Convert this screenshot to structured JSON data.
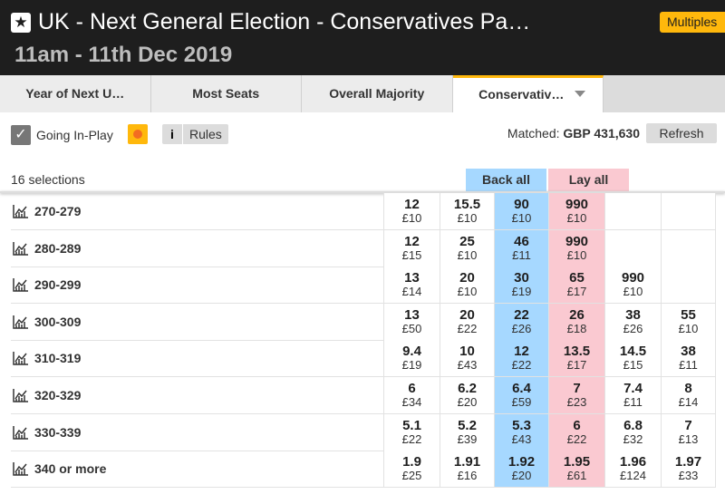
{
  "header": {
    "title": "UK - Next General Election - Conservatives Pa…",
    "subtitle": "11am - 11th Dec 2019",
    "badge": "Multiples"
  },
  "tabs": [
    "Year of Next U…",
    "Most Seats",
    "Overall Majority",
    "Conservativ…"
  ],
  "toolbar": {
    "in_play": "Going In-Play",
    "rules": "Rules",
    "matched_label": "Matched:",
    "matched_amount": "GBP 431,630",
    "refresh": "Refresh"
  },
  "market": {
    "selections": "16 selections",
    "back_all": "Back all",
    "lay_all": "Lay all",
    "rows": [
      {
        "name": "270-279",
        "cells": [
          {
            "price": "12",
            "stake": "£10"
          },
          {
            "price": "15.5",
            "stake": "£10"
          },
          {
            "price": "90",
            "stake": "£10"
          },
          {
            "price": "990",
            "stake": "£10"
          }
        ]
      },
      {
        "name": "280-289",
        "cells": [
          {
            "price": "12",
            "stake": "£15"
          },
          {
            "price": "25",
            "stake": "£10"
          },
          {
            "price": "46",
            "stake": "£11"
          },
          {
            "price": "990",
            "stake": "£10"
          }
        ]
      },
      {
        "name": "290-299",
        "cells": [
          {
            "price": "13",
            "stake": "£14"
          },
          {
            "price": "20",
            "stake": "£10"
          },
          {
            "price": "30",
            "stake": "£19"
          },
          {
            "price": "65",
            "stake": "£17"
          },
          {
            "price": "990",
            "stake": "£10"
          }
        ]
      },
      {
        "name": "300-309",
        "cells": [
          {
            "price": "13",
            "stake": "£50"
          },
          {
            "price": "20",
            "stake": "£22"
          },
          {
            "price": "22",
            "stake": "£26"
          },
          {
            "price": "26",
            "stake": "£18"
          },
          {
            "price": "38",
            "stake": "£26"
          },
          {
            "price": "55",
            "stake": "£10"
          }
        ]
      },
      {
        "name": "310-319",
        "cells": [
          {
            "price": "9.4",
            "stake": "£19"
          },
          {
            "price": "10",
            "stake": "£43"
          },
          {
            "price": "12",
            "stake": "£22"
          },
          {
            "price": "13.5",
            "stake": "£17"
          },
          {
            "price": "14.5",
            "stake": "£15"
          },
          {
            "price": "38",
            "stake": "£11"
          }
        ]
      },
      {
        "name": "320-329",
        "cells": [
          {
            "price": "6",
            "stake": "£34"
          },
          {
            "price": "6.2",
            "stake": "£20"
          },
          {
            "price": "6.4",
            "stake": "£59"
          },
          {
            "price": "7",
            "stake": "£23"
          },
          {
            "price": "7.4",
            "stake": "£11"
          },
          {
            "price": "8",
            "stake": "£14"
          }
        ]
      },
      {
        "name": "330-339",
        "cells": [
          {
            "price": "5.1",
            "stake": "£22"
          },
          {
            "price": "5.2",
            "stake": "£39"
          },
          {
            "price": "5.3",
            "stake": "£43"
          },
          {
            "price": "6",
            "stake": "£22"
          },
          {
            "price": "6.8",
            "stake": "£32"
          },
          {
            "price": "7",
            "stake": "£13"
          }
        ]
      },
      {
        "name": "340 or more",
        "cells": [
          {
            "price": "1.9",
            "stake": "£25"
          },
          {
            "price": "1.91",
            "stake": "£16"
          },
          {
            "price": "1.92",
            "stake": "£20"
          },
          {
            "price": "1.95",
            "stake": "£61"
          },
          {
            "price": "1.96",
            "stake": "£124"
          },
          {
            "price": "1.97",
            "stake": "£33"
          }
        ]
      }
    ]
  }
}
